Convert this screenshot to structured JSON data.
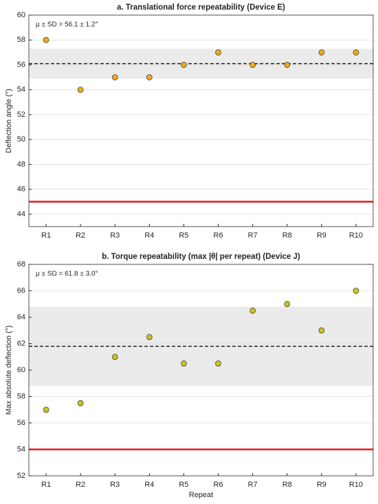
{
  "chart_data": [
    {
      "type": "scatter",
      "title": "a. Translational force repeatability (Device E)",
      "y_label": "Deflection angle (°)",
      "categories": [
        "R1",
        "R2",
        "R3",
        "R4",
        "R5",
        "R6",
        "R7",
        "R8",
        "R9",
        "R10"
      ],
      "values": [
        58,
        54,
        55,
        55,
        56,
        57,
        56,
        56,
        57,
        57
      ],
      "color": "#f2a81d",
      "ylim": [
        43,
        60
      ],
      "yticks": [
        44,
        46,
        48,
        50,
        52,
        54,
        56,
        58,
        60
      ],
      "grid": true,
      "annotation": "μ ± SD = 56.1 ± 1.2°",
      "mean": 56.1,
      "sd": 1.2,
      "threshold": 45,
      "threshold_color": "#e8141a"
    },
    {
      "type": "scatter",
      "title": "b. Torque repeatability (max |θ| per repeat) (Device J)",
      "y_label": "Max absolute deflection (°)",
      "x_label": "Repeat",
      "categories": [
        "R1",
        "R2",
        "R3",
        "R4",
        "R5",
        "R6",
        "R7",
        "R8",
        "R9",
        "R10"
      ],
      "values": [
        57,
        57.5,
        61,
        62.5,
        60.5,
        60.5,
        64.5,
        65,
        63,
        66
      ],
      "color": "#c9c21f",
      "ylim": [
        52,
        68
      ],
      "yticks": [
        52,
        54,
        56,
        58,
        60,
        62,
        64,
        66,
        68
      ],
      "grid": true,
      "annotation": "μ ± SD = 61.8 ± 3.0°",
      "mean": 61.8,
      "sd": 3.0,
      "threshold": 54,
      "threshold_color": "#e8141a"
    }
  ]
}
